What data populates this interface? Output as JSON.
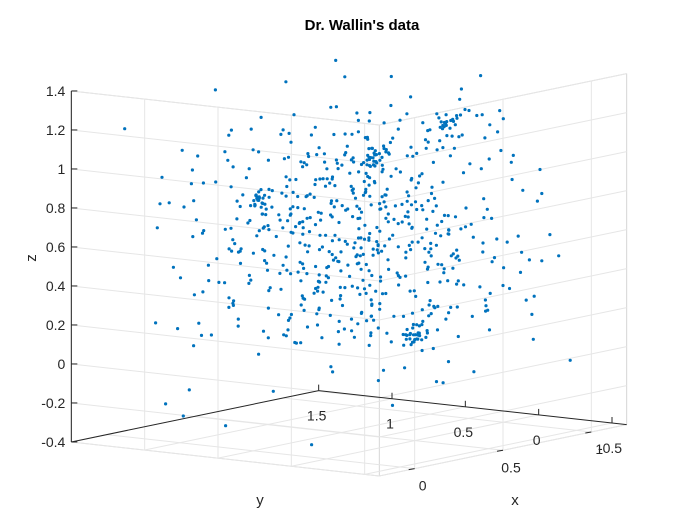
{
  "chart_data": {
    "type": "scatter",
    "title": "Dr. Wallin's data",
    "xlabel": "x",
    "ylabel": "y",
    "zlabel": "z",
    "xlim": [
      -0.2,
      1.2
    ],
    "ylim": [
      -0.6,
      1.5
    ],
    "zlim": [
      -0.4,
      1.4
    ],
    "xticks": [
      "0",
      "0.5",
      "1"
    ],
    "yticks": [
      "-0.5",
      "0",
      "0.5",
      "1",
      "1.5"
    ],
    "zticks": [
      "-0.4",
      "-0.2",
      "0",
      "0.2",
      "0.4",
      "0.6",
      "0.8",
      "1",
      "1.2",
      "1.4"
    ],
    "grid": true,
    "marker_color": "#0072BD",
    "view": "3d-box",
    "clusters": [
      {
        "center": [
          0.58,
          1.15,
          0.72
        ],
        "spread": 0.03
      },
      {
        "center": [
          0.62,
          0.4,
          1.0
        ],
        "spread": 0.03
      },
      {
        "center": [
          0.95,
          0.3,
          1.12
        ],
        "spread": 0.03
      },
      {
        "center": [
          0.5,
          0.0,
          0.15
        ],
        "spread": 0.03
      }
    ],
    "cloud": {
      "center": [
        0.5,
        0.45,
        0.6
      ],
      "spread": [
        0.35,
        0.45,
        0.35
      ],
      "count": 650
    }
  }
}
